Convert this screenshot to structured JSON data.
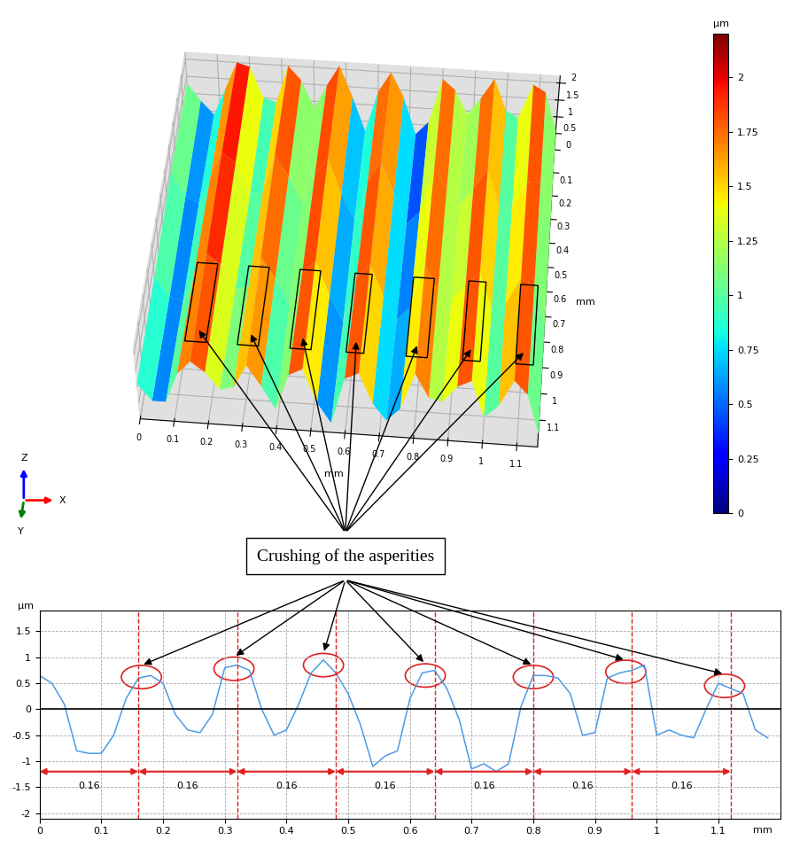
{
  "chart_data": [
    {
      "type": "surface",
      "x": [
        0,
        0.04,
        0.08,
        0.12,
        0.16,
        0.2,
        0.24,
        0.28,
        0.32,
        0.36,
        0.4,
        0.44,
        0.48,
        0.52,
        0.56,
        0.6,
        0.64,
        0.68,
        0.72,
        0.76,
        0.8,
        0.84,
        0.88,
        0.92,
        0.96,
        1.0,
        1.04,
        1.08,
        1.12,
        1.16
      ],
      "y": [
        0,
        0.4,
        0.8,
        1.2
      ],
      "z": [
        [
          1.3,
          0.8,
          0.4,
          1.2,
          2.0,
          1.9,
          1.0,
          0.9,
          2.0,
          1.6,
          0.8,
          1.5,
          2.1,
          1.2,
          0.2,
          1.4,
          2.0,
          1.3,
          0.2,
          0.6,
          1.9,
          1.6,
          0.9,
          1.4,
          2.0,
          1.1,
          0.9,
          1.9,
          1.7,
          0.6
        ],
        [
          1.4,
          0.7,
          0.5,
          1.3,
          2.1,
          1.8,
          0.9,
          1.0,
          2.1,
          1.5,
          0.7,
          1.6,
          2.1,
          1.1,
          0.3,
          1.5,
          2.1,
          1.2,
          0.3,
          0.7,
          2.0,
          1.5,
          1.0,
          1.5,
          2.1,
          1.0,
          1.0,
          1.8,
          1.8,
          0.5
        ],
        [
          1.2,
          0.6,
          0.5,
          1.4,
          2.0,
          1.7,
          1.0,
          1.1,
          2.0,
          1.4,
          0.6,
          1.6,
          2.0,
          1.0,
          0.2,
          1.6,
          2.0,
          1.1,
          0.4,
          0.8,
          2.1,
          1.4,
          1.1,
          1.6,
          2.0,
          0.9,
          1.1,
          1.9,
          1.7,
          0.5
        ],
        [
          1.1,
          0.6,
          0.6,
          1.5,
          1.9,
          1.6,
          1.1,
          1.2,
          1.9,
          1.3,
          0.6,
          1.7,
          1.9,
          0.9,
          0.3,
          1.7,
          1.9,
          1.0,
          0.5,
          0.9,
          2.0,
          1.3,
          1.2,
          1.7,
          1.9,
          0.8,
          1.2,
          2.0,
          1.6,
          0.4
        ]
      ],
      "xlim": [
        0,
        1.16
      ],
      "ylim": [
        0,
        1.2
      ],
      "zlim": [
        0,
        2.2
      ],
      "xticks": [
        0,
        0.1,
        0.2,
        0.3,
        0.4,
        0.5,
        0.6,
        0.7,
        0.8,
        0.9,
        1,
        1.1
      ],
      "yticks": [
        0.1,
        0.2,
        0.3,
        0.4,
        0.5,
        0.6,
        0.7,
        0.8,
        0.9,
        1,
        1.1
      ],
      "zticks": [
        0,
        0.5,
        1,
        1.5,
        2
      ],
      "x_label": "mm",
      "y_label": "mm",
      "colorbar": {
        "label": "µm",
        "range": [
          0,
          2.2
        ],
        "ticks": [
          0,
          0.25,
          0.5,
          0.75,
          1,
          1.25,
          1.5,
          1.75,
          2
        ]
      },
      "highlight_boxes": [
        [
          0.14,
          0.2
        ],
        [
          0.29,
          0.35
        ],
        [
          0.44,
          0.5
        ],
        [
          0.6,
          0.65
        ],
        [
          0.77,
          0.83
        ],
        [
          0.93,
          0.98
        ],
        [
          1.08,
          1.13
        ]
      ],
      "highlight_y": [
        0.85,
        1.15
      ],
      "axis_triad": {
        "x": "X",
        "y": "Y",
        "z": "Z"
      }
    },
    {
      "type": "line",
      "x": [
        0,
        0.02,
        0.04,
        0.06,
        0.08,
        0.1,
        0.12,
        0.14,
        0.16,
        0.18,
        0.2,
        0.22,
        0.24,
        0.26,
        0.28,
        0.3,
        0.32,
        0.34,
        0.36,
        0.38,
        0.4,
        0.42,
        0.44,
        0.46,
        0.48,
        0.5,
        0.52,
        0.54,
        0.56,
        0.58,
        0.6,
        0.62,
        0.64,
        0.66,
        0.68,
        0.7,
        0.72,
        0.74,
        0.76,
        0.78,
        0.8,
        0.82,
        0.84,
        0.86,
        0.88,
        0.9,
        0.92,
        0.94,
        0.96,
        0.98,
        1.0,
        1.02,
        1.04,
        1.06,
        1.08,
        1.1,
        1.12,
        1.14,
        1.16,
        1.18
      ],
      "values": [
        0.65,
        0.5,
        0.1,
        -0.8,
        -0.85,
        -0.85,
        -0.5,
        0.2,
        0.6,
        0.65,
        0.5,
        -0.1,
        -0.4,
        -0.45,
        -0.1,
        0.8,
        0.85,
        0.75,
        0.0,
        -0.5,
        -0.4,
        0.1,
        0.7,
        0.95,
        0.7,
        0.3,
        -0.3,
        -1.1,
        -0.9,
        -0.8,
        0.2,
        0.7,
        0.75,
        0.4,
        -0.2,
        -1.15,
        -1.05,
        -1.2,
        -1.05,
        0.05,
        0.65,
        0.65,
        0.6,
        0.3,
        -0.5,
        -0.45,
        0.6,
        0.7,
        0.75,
        0.85,
        -0.5,
        -0.4,
        -0.5,
        -0.55,
        0.0,
        0.5,
        0.4,
        0.3,
        -0.4,
        -0.55
      ],
      "color": "#4d9be6",
      "xlim": [
        0,
        1.2
      ],
      "ylim": [
        -2.1,
        1.9
      ],
      "xticks": [
        0,
        0.1,
        0.2,
        0.3,
        0.4,
        0.5,
        0.6,
        0.7,
        0.8,
        0.9,
        1,
        1.1
      ],
      "yticks": [
        -2,
        -1.5,
        -1,
        -0.5,
        0,
        0.5,
        1,
        1.5
      ],
      "x_label": "mm",
      "y_label": "µm",
      "grid": true,
      "zero_line": 0,
      "reference_lines": [
        0.16,
        0.32,
        0.48,
        0.64,
        0.8,
        0.96,
        1.12
      ],
      "intervals": [
        [
          0,
          0.16
        ],
        [
          0.16,
          0.32
        ],
        [
          0.32,
          0.48
        ],
        [
          0.48,
          0.64
        ],
        [
          0.64,
          0.8
        ],
        [
          0.8,
          0.96
        ],
        [
          0.96,
          1.12
        ]
      ],
      "interval_labels": [
        "0.16",
        "0.16",
        "0.16",
        "0.16",
        "0.16",
        "0.16",
        "0.16"
      ],
      "interval_y": -1.2,
      "highlights": [
        [
          0.165,
          0.62
        ],
        [
          0.315,
          0.78
        ],
        [
          0.46,
          0.85
        ],
        [
          0.625,
          0.65
        ],
        [
          0.8,
          0.62
        ],
        [
          0.95,
          0.72
        ],
        [
          1.11,
          0.45
        ]
      ]
    }
  ],
  "annotation": "Crushing of the asperities"
}
